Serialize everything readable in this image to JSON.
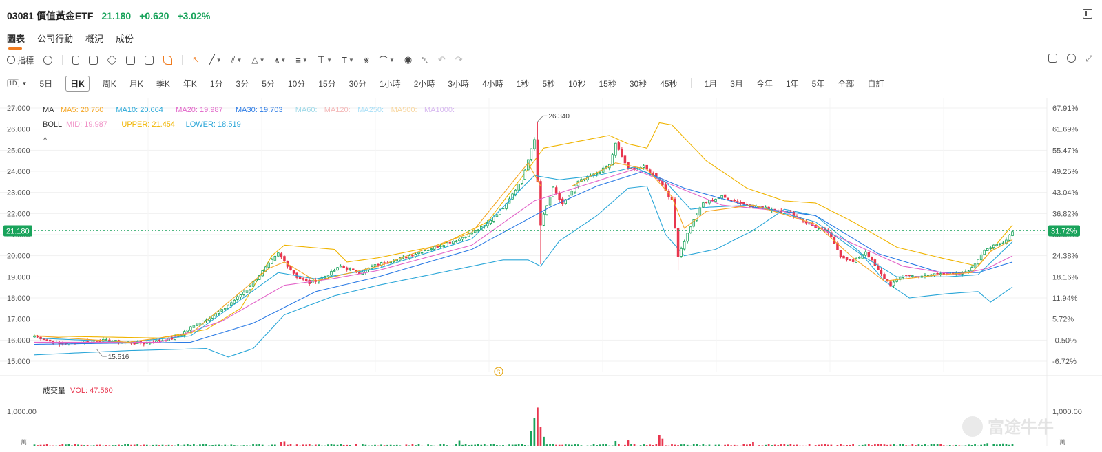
{
  "header": {
    "code": "03081",
    "name": "價值黃金ETF",
    "price": "21.180",
    "change": "+0.620",
    "change_pct": "+3.02%"
  },
  "tabs": [
    "圖表",
    "公司行動",
    "概況",
    "成份"
  ],
  "toolbar": {
    "indicator_label": "指標"
  },
  "periods": {
    "interval_select": "1D",
    "items": [
      "5日",
      "日K",
      "周K",
      "月K",
      "季K",
      "年K",
      "1分",
      "3分",
      "5分",
      "10分",
      "15分",
      "30分",
      "1小時",
      "2小時",
      "3小時",
      "4小時",
      "1秒",
      "5秒",
      "10秒",
      "15秒",
      "30秒",
      "45秒"
    ],
    "range_items": [
      "1月",
      "3月",
      "今年",
      "1年",
      "5年",
      "全部",
      "自訂"
    ],
    "active": "日K"
  },
  "legend": {
    "ma_title": "MA",
    "ma_items": [
      {
        "text": "MA5: 20.760",
        "color": "#f5a623"
      },
      {
        "text": "MA10: 20.664",
        "color": "#29a8d8"
      },
      {
        "text": "MA20: 19.987",
        "color": "#e262c8"
      },
      {
        "text": "MA30: 19.703",
        "color": "#2c7be5"
      },
      {
        "text": "MA60:",
        "color": "#9fd9e8"
      },
      {
        "text": "MA120:",
        "color": "#f4b9b9"
      },
      {
        "text": "MA250:",
        "color": "#a8dff7"
      },
      {
        "text": "MA500:",
        "color": "#f8d7a0"
      },
      {
        "text": "MA1000:",
        "color": "#d7b8f0"
      }
    ],
    "boll_title": "BOLL",
    "boll_items": [
      {
        "text": "MID: 19.987",
        "color": "#f093c7"
      },
      {
        "text": "UPPER: 21.454",
        "color": "#f0b400"
      },
      {
        "text": "LOWER: 18.519",
        "color": "#2aa6d8"
      }
    ],
    "collapse_glyph": "^"
  },
  "volume_legend": {
    "title": "成交量",
    "vol": "VOL: 47.560"
  },
  "watermark": "富途牛牛",
  "colors": {
    "up": "#19a35b",
    "down": "#e8364e",
    "ma5": "#f5a623",
    "ma10": "#29a8d8",
    "ma20": "#e262c8",
    "ma30": "#2c7be5",
    "upper": "#f0b400",
    "lower": "#2aa6d8",
    "current": "#19a35b"
  },
  "chart_data": {
    "type": "candlestick",
    "ylim": [
      14.8,
      27.1
    ],
    "y_ticks": [
      "27.000",
      "26.000",
      "25.000",
      "24.000",
      "23.000",
      "22.000",
      "21.000",
      "20.000",
      "19.000",
      "18.000",
      "17.000",
      "16.000",
      "15.000"
    ],
    "y_tick_values": [
      27,
      26,
      25,
      24,
      23,
      22,
      21,
      20,
      19,
      18,
      17,
      16,
      15
    ],
    "pct_ticks": [
      "67.91%",
      "61.69%",
      "55.47%",
      "49.25%",
      "43.04%",
      "36.82%",
      "30.60%",
      "24.38%",
      "18.16%",
      "11.94%",
      "5.72%",
      "-0.50%",
      "-6.72%"
    ],
    "current_price": 21.18,
    "current_label": "21.180",
    "current_pct": "31.72%",
    "max_label": "26.340",
    "min_label": "15.516",
    "volume_tick": "1,000.00",
    "volume_unit": "萬",
    "volume_ylim": [
      0,
      1400
    ],
    "dividend_marker": "S",
    "close_anchors": [
      [
        0,
        16.2
      ],
      [
        8,
        15.8
      ],
      [
        20,
        16.0
      ],
      [
        35,
        15.85
      ],
      [
        45,
        16.1
      ],
      [
        50,
        16.6
      ],
      [
        60,
        17.4
      ],
      [
        68,
        18.4
      ],
      [
        75,
        19.6
      ],
      [
        78,
        20.1
      ],
      [
        84,
        19.0
      ],
      [
        88,
        18.7
      ],
      [
        94,
        19.1
      ],
      [
        98,
        19.5
      ],
      [
        104,
        19.2
      ],
      [
        110,
        19.6
      ],
      [
        118,
        19.9
      ],
      [
        128,
        20.4
      ],
      [
        136,
        20.8
      ],
      [
        144,
        21.4
      ],
      [
        150,
        22.3
      ],
      [
        156,
        23.6
      ],
      [
        160,
        25.5
      ],
      [
        162,
        21.5
      ],
      [
        166,
        23.2
      ],
      [
        169,
        22.4
      ],
      [
        174,
        23.5
      ],
      [
        180,
        23.9
      ],
      [
        184,
        24.3
      ],
      [
        186,
        25.3
      ],
      [
        190,
        24.1
      ],
      [
        195,
        24.2
      ],
      [
        200,
        23.6
      ],
      [
        204,
        22.6
      ],
      [
        206,
        20.0
      ],
      [
        210,
        21.4
      ],
      [
        214,
        22.5
      ],
      [
        220,
        22.8
      ],
      [
        228,
        22.4
      ],
      [
        236,
        22.2
      ],
      [
        242,
        22.0
      ],
      [
        248,
        21.5
      ],
      [
        254,
        21.1
      ],
      [
        258,
        20.0
      ],
      [
        262,
        19.7
      ],
      [
        266,
        20.2
      ],
      [
        270,
        19.3
      ],
      [
        274,
        18.6
      ],
      [
        278,
        19.1
      ],
      [
        284,
        19.0
      ],
      [
        290,
        19.2
      ],
      [
        296,
        19.1
      ],
      [
        300,
        19.4
      ],
      [
        304,
        20.3
      ],
      [
        310,
        20.6
      ],
      [
        313,
        21.18
      ]
    ],
    "ma5_anchors": [
      [
        0,
        16.2
      ],
      [
        30,
        15.9
      ],
      [
        50,
        16.3
      ],
      [
        75,
        19.4
      ],
      [
        80,
        19.7
      ],
      [
        90,
        18.8
      ],
      [
        110,
        19.5
      ],
      [
        140,
        21.1
      ],
      [
        158,
        24.4
      ],
      [
        162,
        23.3
      ],
      [
        172,
        23.3
      ],
      [
        186,
        24.4
      ],
      [
        196,
        24.1
      ],
      [
        204,
        22.8
      ],
      [
        208,
        21.3
      ],
      [
        215,
        22.1
      ],
      [
        230,
        22.4
      ],
      [
        250,
        21.5
      ],
      [
        262,
        19.9
      ],
      [
        272,
        18.8
      ],
      [
        290,
        19.1
      ],
      [
        300,
        19.2
      ],
      [
        306,
        20.2
      ],
      [
        313,
        20.76
      ]
    ],
    "ma10_anchors": [
      [
        0,
        16.1
      ],
      [
        30,
        15.9
      ],
      [
        50,
        16.2
      ],
      [
        78,
        19.2
      ],
      [
        90,
        18.9
      ],
      [
        110,
        19.4
      ],
      [
        140,
        20.8
      ],
      [
        160,
        23.8
      ],
      [
        168,
        23.6
      ],
      [
        180,
        23.8
      ],
      [
        192,
        24.2
      ],
      [
        202,
        23.5
      ],
      [
        210,
        22.2
      ],
      [
        216,
        22.3
      ],
      [
        230,
        22.4
      ],
      [
        250,
        21.6
      ],
      [
        266,
        19.9
      ],
      [
        276,
        19.0
      ],
      [
        292,
        19.0
      ],
      [
        302,
        19.1
      ],
      [
        313,
        20.66
      ]
    ],
    "ma20_anchors": [
      [
        0,
        15.9
      ],
      [
        40,
        15.9
      ],
      [
        60,
        16.9
      ],
      [
        80,
        18.6
      ],
      [
        95,
        18.9
      ],
      [
        110,
        19.3
      ],
      [
        140,
        20.5
      ],
      [
        160,
        22.6
      ],
      [
        175,
        23.3
      ],
      [
        192,
        24.1
      ],
      [
        205,
        23.3
      ],
      [
        220,
        22.4
      ],
      [
        240,
        22.1
      ],
      [
        260,
        20.7
      ],
      [
        278,
        19.5
      ],
      [
        295,
        19.1
      ],
      [
        305,
        19.4
      ],
      [
        313,
        19.99
      ]
    ],
    "ma30_anchors": [
      [
        0,
        15.8
      ],
      [
        50,
        15.9
      ],
      [
        70,
        16.8
      ],
      [
        90,
        18.3
      ],
      [
        110,
        19.0
      ],
      [
        140,
        20.3
      ],
      [
        165,
        22.3
      ],
      [
        180,
        23.3
      ],
      [
        195,
        24.0
      ],
      [
        208,
        23.2
      ],
      [
        230,
        22.3
      ],
      [
        250,
        21.9
      ],
      [
        270,
        20.1
      ],
      [
        290,
        19.2
      ],
      [
        302,
        19.2
      ],
      [
        313,
        19.7
      ]
    ],
    "upper_anchors": [
      [
        0,
        16.2
      ],
      [
        40,
        16.1
      ],
      [
        55,
        16.5
      ],
      [
        66,
        17.5
      ],
      [
        76,
        20.0
      ],
      [
        80,
        20.5
      ],
      [
        96,
        20.3
      ],
      [
        100,
        19.7
      ],
      [
        110,
        19.9
      ],
      [
        130,
        20.5
      ],
      [
        145,
        21.6
      ],
      [
        160,
        24.5
      ],
      [
        163,
        25.1
      ],
      [
        184,
        25.7
      ],
      [
        190,
        25.3
      ],
      [
        196,
        25.1
      ],
      [
        200,
        26.3
      ],
      [
        204,
        26.2
      ],
      [
        215,
        24.5
      ],
      [
        228,
        23.2
      ],
      [
        240,
        22.6
      ],
      [
        250,
        22.5
      ],
      [
        262,
        21.6
      ],
      [
        276,
        20.4
      ],
      [
        290,
        19.9
      ],
      [
        302,
        19.5
      ],
      [
        313,
        21.45
      ]
    ],
    "lower_anchors": [
      [
        0,
        15.3
      ],
      [
        30,
        15.5
      ],
      [
        55,
        15.6
      ],
      [
        62,
        15.2
      ],
      [
        70,
        15.6
      ],
      [
        80,
        17.2
      ],
      [
        96,
        18.1
      ],
      [
        110,
        18.6
      ],
      [
        130,
        19.2
      ],
      [
        150,
        19.8
      ],
      [
        158,
        19.8
      ],
      [
        162,
        19.5
      ],
      [
        168,
        20.7
      ],
      [
        180,
        21.9
      ],
      [
        190,
        23.2
      ],
      [
        196,
        23.3
      ],
      [
        202,
        21.0
      ],
      [
        208,
        20.0
      ],
      [
        218,
        20.3
      ],
      [
        230,
        21.2
      ],
      [
        240,
        22.2
      ],
      [
        250,
        21.9
      ],
      [
        264,
        20.2
      ],
      [
        272,
        18.8
      ],
      [
        280,
        18.0
      ],
      [
        292,
        18.2
      ],
      [
        302,
        18.3
      ],
      [
        306,
        17.8
      ],
      [
        313,
        18.52
      ]
    ],
    "volume_spikes": [
      [
        160,
        880
      ],
      [
        161,
        1200
      ],
      [
        162,
        610
      ],
      [
        159,
        480
      ],
      [
        163,
        300
      ],
      [
        200,
        350
      ],
      [
        201,
        240
      ],
      [
        190,
        190
      ],
      [
        136,
        180
      ],
      [
        80,
        160
      ],
      [
        79,
        130
      ],
      [
        186,
        170
      ],
      [
        230,
        130
      ],
      [
        305,
        100
      ],
      [
        310,
        90
      ]
    ]
  }
}
